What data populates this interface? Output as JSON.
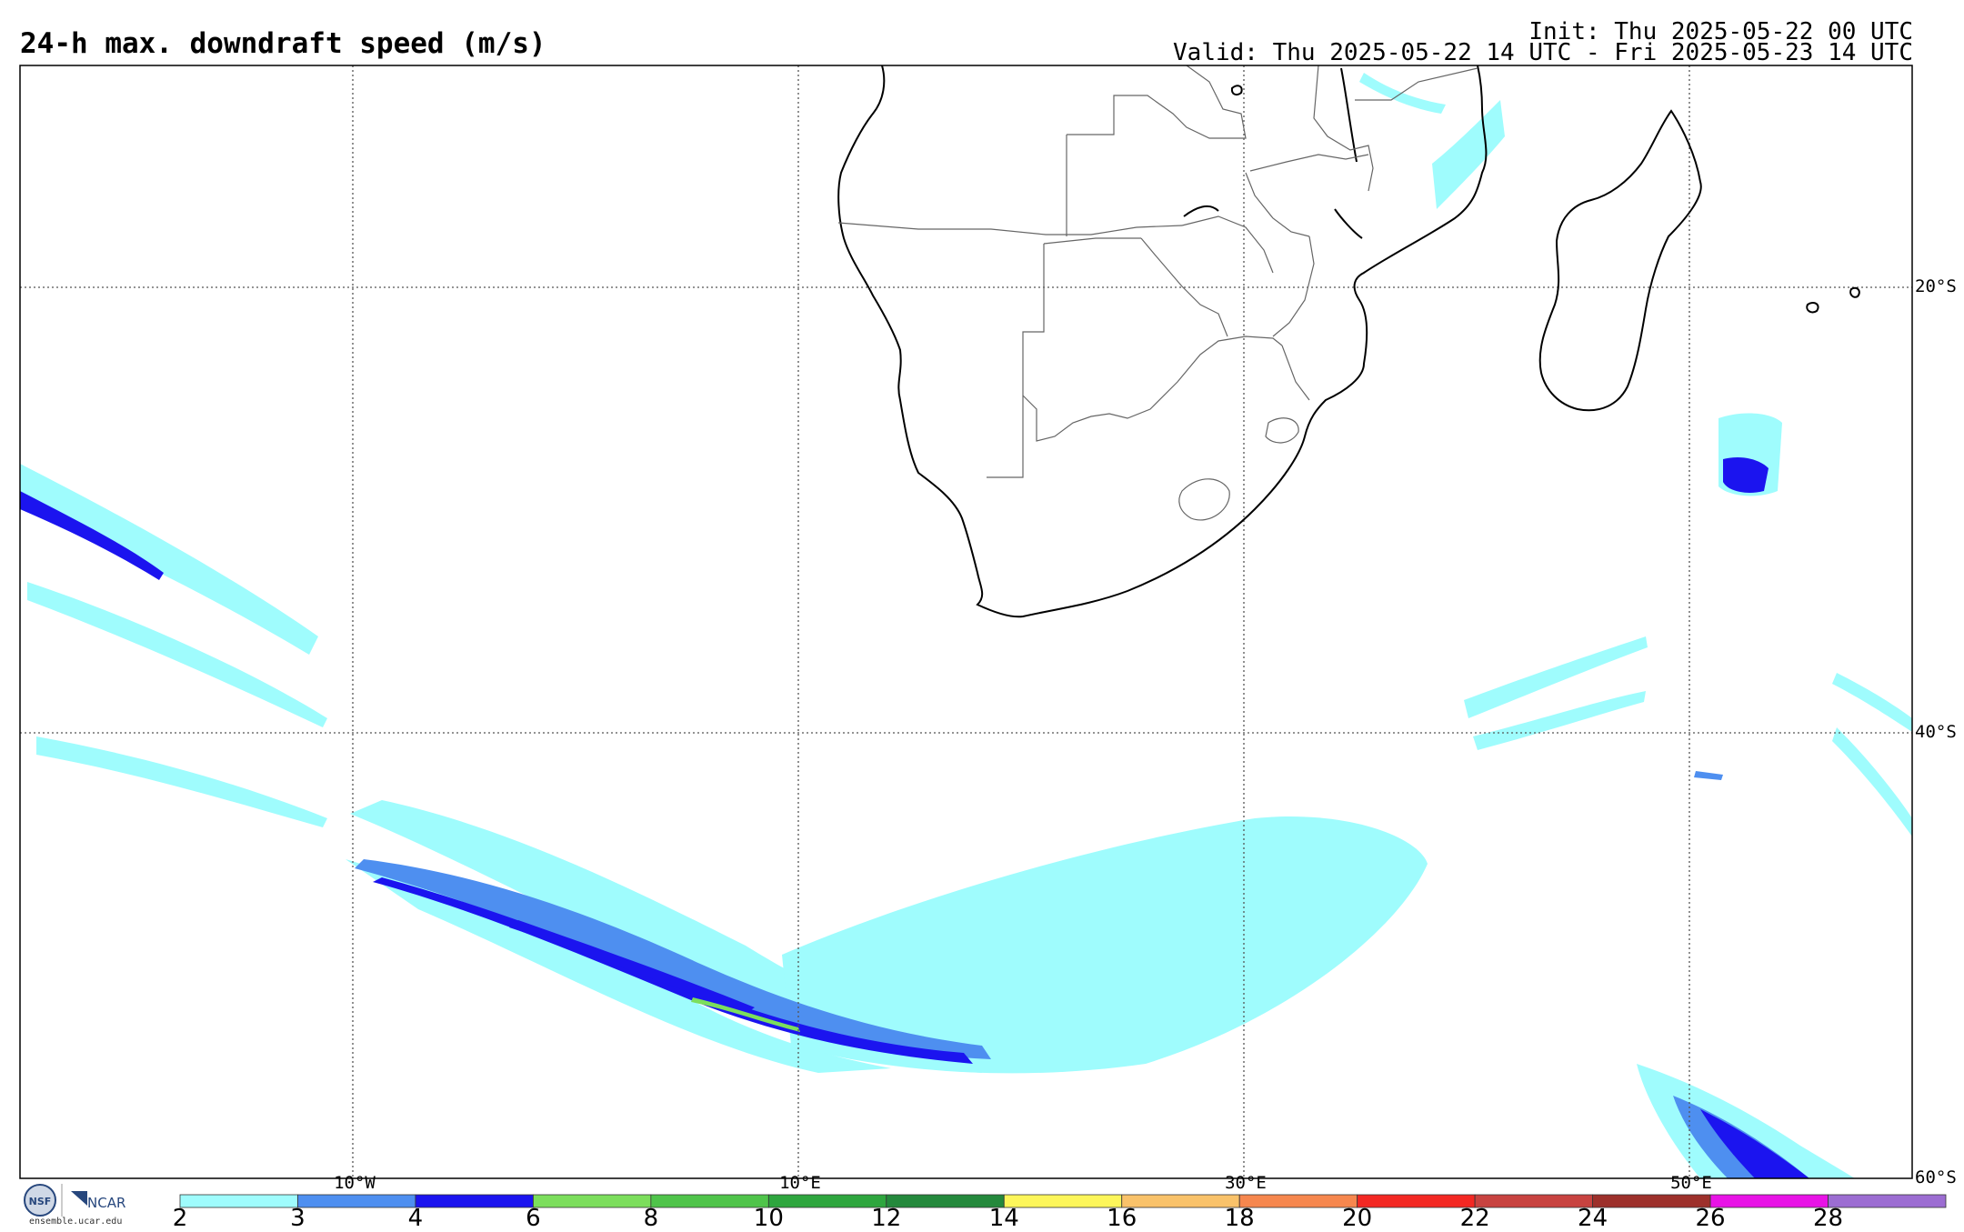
{
  "title": "24-h max. downdraft speed (m/s)",
  "init_line": "Init: Thu 2025-05-22 00 UTC",
  "valid_line": "Valid: Thu 2025-05-22 14 UTC - Fri 2025-05-23 14 UTC",
  "lat_labels": [
    "20°S",
    "40°S",
    "60°S"
  ],
  "lon_labels": [
    "10°W",
    "10°E",
    "30°E",
    "50°E"
  ],
  "colorbar": {
    "ticks": [
      "2",
      "3",
      "4",
      "6",
      "8",
      "10",
      "12",
      "14",
      "16",
      "18",
      "20",
      "22",
      "24",
      "26",
      "28"
    ],
    "colors": [
      "#9ffcfd",
      "#4e8ff0",
      "#1b14ef",
      "#7cde5c",
      "#4fc44a",
      "#2ea63e",
      "#24893c",
      "#fdf65a",
      "#f9c26a",
      "#f6874e",
      "#f32823",
      "#c84340",
      "#9d302b",
      "#e813e6",
      "#9c6dd2"
    ]
  },
  "logo": {
    "org": "NCAR",
    "url": "ensemble.ucar.edu"
  }
}
